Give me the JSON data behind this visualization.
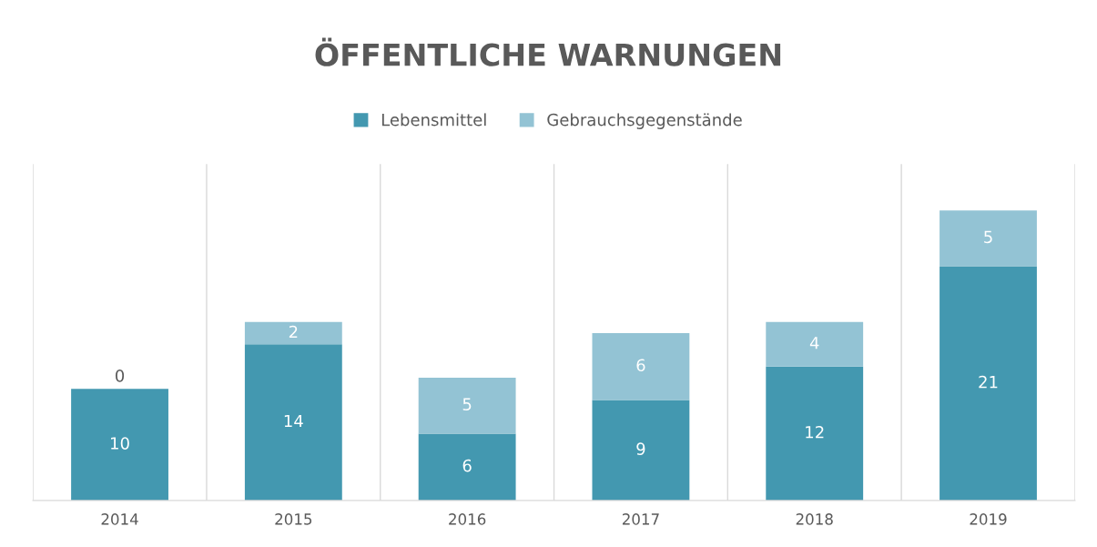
{
  "chart_data": {
    "type": "bar",
    "title": "ÖFFENTLICHE WARNUNGEN",
    "stacked": true,
    "data_labels": true,
    "legend": "top",
    "grid": "x",
    "categories": [
      "2014",
      "2015",
      "2016",
      "2017",
      "2018",
      "2019"
    ],
    "series": [
      {
        "name": "Lebensmittel",
        "color": "#4398b0",
        "values": [
          10,
          14,
          6,
          9,
          12,
          21
        ]
      },
      {
        "name": "Gebrauchsgegenstände",
        "color": "#93c3d4",
        "values": [
          0,
          2,
          5,
          6,
          4,
          5
        ]
      }
    ]
  }
}
